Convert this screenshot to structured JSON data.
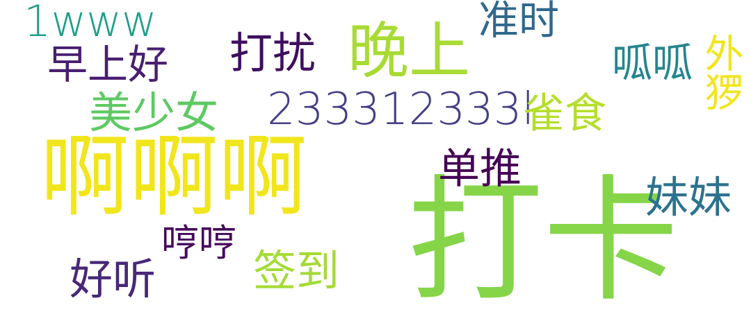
{
  "words": {
    "daka": {
      "text": "打卡",
      "color": "#86d549"
    },
    "aaa": {
      "text": "啊啊啊",
      "color": "#f1e51d"
    },
    "wanshang": {
      "text": "晚上",
      "color": "#a8db34"
    },
    "num": {
      "text": "233312333l",
      "color": "#433e85"
    },
    "zaoshang": {
      "text": "早上好",
      "color": "#481f70"
    },
    "meishao": {
      "text": "美少女",
      "color": "#5ec962"
    },
    "darao": {
      "text": "打扰",
      "color": "#3e0f5e"
    },
    "oneww": {
      "text": "1www",
      "color": "#1f9f88"
    },
    "zhunshi": {
      "text": "准时",
      "color": "#31688e"
    },
    "guagua": {
      "text": "呱呱",
      "color": "#25858e"
    },
    "wailuo": {
      "text": "外猡",
      "color": "#f1e51d"
    },
    "queshi": {
      "text": "雀食",
      "color": "#b5de2b"
    },
    "dantui": {
      "text": "单推",
      "color": "#440154"
    },
    "meimei": {
      "text": "妹妹",
      "color": "#2c728e"
    },
    "hengheng": {
      "text": "哼哼",
      "color": "#46085c"
    },
    "qiandao": {
      "text": "签到",
      "color": "#a5db36"
    },
    "haoting": {
      "text": "好听",
      "color": "#482878"
    }
  }
}
